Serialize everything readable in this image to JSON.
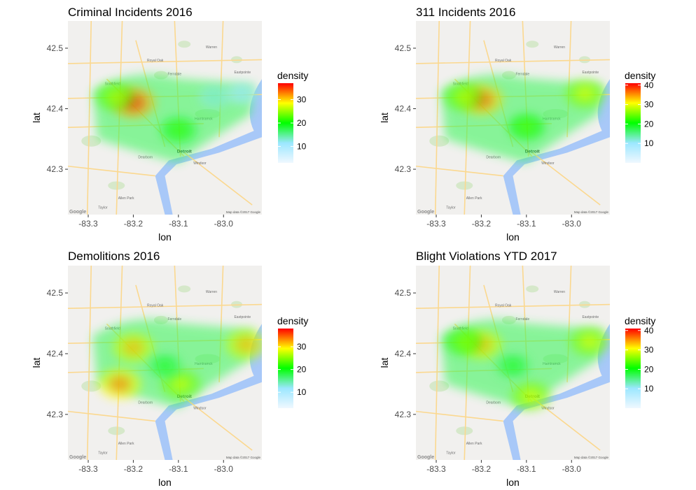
{
  "chart_data": [
    {
      "type": "heatmap",
      "title": "Criminal Incidents 2016",
      "xlabel": "lon",
      "ylabel": "lat",
      "xticks": [
        "-83.3",
        "-83.2",
        "-83.1",
        "-83.0"
      ],
      "yticks": [
        "42.5",
        "42.4",
        "42.3"
      ],
      "xlim": [
        -83.345,
        -82.915
      ],
      "ylim": [
        42.225,
        42.545
      ],
      "legend_title": "density",
      "legend_ticks": [
        "10",
        "20",
        "30"
      ],
      "legend_range": [
        3,
        37
      ],
      "hotspots": [
        {
          "lon": -83.2,
          "lat": 42.41,
          "density": 36
        },
        {
          "lon": -83.24,
          "lat": 42.42,
          "density": 26
        },
        {
          "lon": -83.1,
          "lat": 42.365,
          "density": 22
        },
        {
          "lon": -83.02,
          "lat": 42.42,
          "density": 14
        },
        {
          "lon": -82.96,
          "lat": 42.425,
          "density": 12
        }
      ]
    },
    {
      "type": "heatmap",
      "title": "311 Incidents 2016",
      "xlabel": "lon",
      "ylabel": "lat",
      "xticks": [
        "-83.3",
        "-83.2",
        "-83.1",
        "-83.0"
      ],
      "yticks": [
        "42.5",
        "42.4",
        "42.3"
      ],
      "xlim": [
        -83.345,
        -82.915
      ],
      "ylim": [
        42.225,
        42.545
      ],
      "legend_title": "density",
      "legend_ticks": [
        "10",
        "20",
        "30",
        "40"
      ],
      "legend_range": [
        0,
        41
      ],
      "hotspots": [
        {
          "lon": -83.2,
          "lat": 42.415,
          "density": 38
        },
        {
          "lon": -83.24,
          "lat": 42.42,
          "density": 28
        },
        {
          "lon": -83.1,
          "lat": 42.37,
          "density": 24
        },
        {
          "lon": -82.97,
          "lat": 42.425,
          "density": 30
        }
      ]
    },
    {
      "type": "heatmap",
      "title": "Demolitions 2016",
      "xlabel": "lon",
      "ylabel": "lat",
      "xticks": [
        "-83.3",
        "-83.2",
        "-83.1",
        "-83.0"
      ],
      "yticks": [
        "42.5",
        "42.4",
        "42.3"
      ],
      "xlim": [
        -83.345,
        -82.915
      ],
      "ylim": [
        42.225,
        42.545
      ],
      "legend_title": "density",
      "legend_ticks": [
        "10",
        "20",
        "30"
      ],
      "legend_range": [
        3,
        38
      ],
      "hotspots": [
        {
          "lon": -83.2,
          "lat": 42.41,
          "density": 32
        },
        {
          "lon": -83.23,
          "lat": 42.35,
          "density": 34
        },
        {
          "lon": -83.095,
          "lat": 42.35,
          "density": 28
        },
        {
          "lon": -82.95,
          "lat": 42.415,
          "density": 32
        },
        {
          "lon": -83.13,
          "lat": 42.38,
          "density": 20
        }
      ]
    },
    {
      "type": "heatmap",
      "title": "Blight Violations YTD 2017",
      "xlabel": "lon",
      "ylabel": "lat",
      "xticks": [
        "-83.3",
        "-83.2",
        "-83.1",
        "-83.0"
      ],
      "yticks": [
        "42.5",
        "42.4",
        "42.3"
      ],
      "xlim": [
        -83.345,
        -82.915
      ],
      "ylim": [
        42.225,
        42.545
      ],
      "legend_title": "density",
      "legend_ticks": [
        "10",
        "20",
        "30",
        "40"
      ],
      "legend_range": [
        0,
        41
      ],
      "hotspots": [
        {
          "lon": -83.2,
          "lat": 42.415,
          "density": 34
        },
        {
          "lon": -83.24,
          "lat": 42.42,
          "density": 26
        },
        {
          "lon": -83.09,
          "lat": 42.33,
          "density": 30
        },
        {
          "lon": -82.96,
          "lat": 42.42,
          "density": 30
        },
        {
          "lon": -83.13,
          "lat": 42.38,
          "density": 20
        }
      ]
    }
  ],
  "map_labels": {
    "cities": [
      "Detroit",
      "Windsor",
      "Dearborn",
      "Southfield",
      "Warren",
      "Hamtramck",
      "Taylor",
      "Allen Park",
      "Royal Oak",
      "Ferndale",
      "Eastpointe"
    ],
    "google": "Google",
    "credit": "Map data ©2017 Google"
  },
  "colors": {
    "map_land": "#f1f0ee",
    "map_water": "#a8c8f8",
    "map_road": "#fbd88f",
    "map_park": "#cfe6c0",
    "scale": [
      "#f0f8ff",
      "#9be7ff",
      "#00ff00",
      "#ffff00",
      "#ff0000"
    ]
  }
}
